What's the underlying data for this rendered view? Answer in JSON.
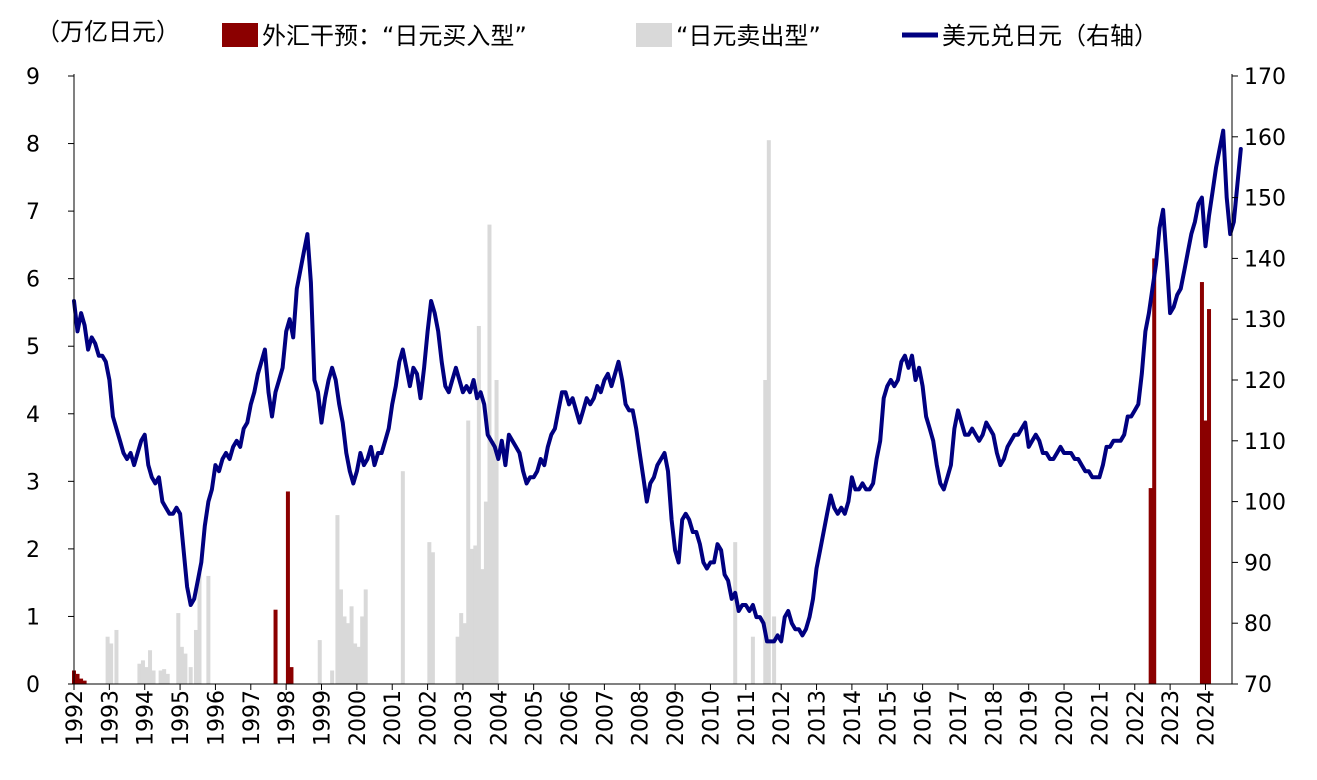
{
  "chart_data": {
    "type": "bar+line",
    "unit_label": "（万亿日元）",
    "legend": [
      {
        "name": "外汇干预：“日元买入型”",
        "kind": "bar",
        "color": "#8B0000"
      },
      {
        "name": "“日元卖出型”",
        "kind": "bar",
        "color": "#D9D9D9"
      },
      {
        "name": "美元兑日元（右轴）",
        "kind": "line",
        "color": "#000080"
      }
    ],
    "left_axis": {
      "min": 0,
      "max": 9,
      "ticks": [
        0,
        1,
        2,
        3,
        4,
        5,
        6,
        7,
        8,
        9
      ]
    },
    "right_axis": {
      "min": 70,
      "max": 170,
      "ticks": [
        70,
        80,
        90,
        100,
        110,
        120,
        130,
        140,
        150,
        160,
        170
      ]
    },
    "x_axis": {
      "start": 1992,
      "end": 2024.75,
      "tick_labels": [
        "1992",
        "1993",
        "1994",
        "1995",
        "1996",
        "1997",
        "1998",
        "1999",
        "2000",
        "2001",
        "2002",
        "2003",
        "2004",
        "2005",
        "2006",
        "2007",
        "2008",
        "2009",
        "2010",
        "2011",
        "2012",
        "2013",
        "2014",
        "2015",
        "2016",
        "2017",
        "2018",
        "2019",
        "2020",
        "2021",
        "2022",
        "2023",
        "2024"
      ]
    },
    "grid": false,
    "colors": {
      "buy": "#8B0000",
      "sell": "#D9D9D9",
      "line": "#000080",
      "axis": "#000000"
    },
    "buy_interventions": [
      {
        "t": 1992.0,
        "v": 0.2
      },
      {
        "t": 1992.1,
        "v": 0.15
      },
      {
        "t": 1992.2,
        "v": 0.08
      },
      {
        "t": 1992.3,
        "v": 0.05
      },
      {
        "t": 1997.7,
        "v": 1.1
      },
      {
        "t": 1998.05,
        "v": 2.85
      },
      {
        "t": 1998.15,
        "v": 0.25
      },
      {
        "t": 2022.45,
        "v": 2.9
      },
      {
        "t": 2022.55,
        "v": 6.3
      },
      {
        "t": 2023.9,
        "v": 5.95
      },
      {
        "t": 2024.0,
        "v": 3.9
      },
      {
        "t": 2024.1,
        "v": 5.55
      }
    ],
    "sell_interventions": [
      {
        "t": 1992.95,
        "v": 0.7
      },
      {
        "t": 1993.05,
        "v": 0.6
      },
      {
        "t": 1993.2,
        "v": 0.8
      },
      {
        "t": 1993.85,
        "v": 0.3
      },
      {
        "t": 1993.95,
        "v": 0.35
      },
      {
        "t": 1994.05,
        "v": 0.25
      },
      {
        "t": 1994.15,
        "v": 0.5
      },
      {
        "t": 1994.25,
        "v": 0.2
      },
      {
        "t": 1994.45,
        "v": 0.2
      },
      {
        "t": 1994.55,
        "v": 0.22
      },
      {
        "t": 1994.65,
        "v": 0.15
      },
      {
        "t": 1994.95,
        "v": 1.05
      },
      {
        "t": 1995.05,
        "v": 0.55
      },
      {
        "t": 1995.15,
        "v": 0.45
      },
      {
        "t": 1995.3,
        "v": 0.25
      },
      {
        "t": 1995.45,
        "v": 0.8
      },
      {
        "t": 1995.55,
        "v": 1.65
      },
      {
        "t": 1995.8,
        "v": 1.6
      },
      {
        "t": 1998.95,
        "v": 0.65
      },
      {
        "t": 1999.3,
        "v": 0.2
      },
      {
        "t": 1999.45,
        "v": 2.5
      },
      {
        "t": 1999.55,
        "v": 1.4
      },
      {
        "t": 1999.65,
        "v": 1.0
      },
      {
        "t": 1999.75,
        "v": 0.9
      },
      {
        "t": 1999.85,
        "v": 1.15
      },
      {
        "t": 1999.95,
        "v": 0.6
      },
      {
        "t": 2000.05,
        "v": 0.55
      },
      {
        "t": 2000.15,
        "v": 1.0
      },
      {
        "t": 2000.25,
        "v": 1.4
      },
      {
        "t": 2001.3,
        "v": 3.15
      },
      {
        "t": 2002.05,
        "v": 2.1
      },
      {
        "t": 2002.15,
        "v": 1.95
      },
      {
        "t": 2002.85,
        "v": 0.7
      },
      {
        "t": 2002.95,
        "v": 1.05
      },
      {
        "t": 2003.05,
        "v": 0.9
      },
      {
        "t": 2003.15,
        "v": 3.9
      },
      {
        "t": 2003.25,
        "v": 2.0
      },
      {
        "t": 2003.35,
        "v": 2.05
      },
      {
        "t": 2003.45,
        "v": 5.3
      },
      {
        "t": 2003.55,
        "v": 1.7
      },
      {
        "t": 2003.65,
        "v": 2.7
      },
      {
        "t": 2003.75,
        "v": 6.8
      },
      {
        "t": 2003.85,
        "v": 3.6
      },
      {
        "t": 2003.95,
        "v": 4.5
      },
      {
        "t": 2010.7,
        "v": 2.1
      },
      {
        "t": 2011.2,
        "v": 0.7
      },
      {
        "t": 2011.55,
        "v": 4.5
      },
      {
        "t": 2011.65,
        "v": 8.05
      },
      {
        "t": 2011.8,
        "v": 1.0
      }
    ],
    "usd_jpy": [
      [
        1992.0,
        133
      ],
      [
        1992.1,
        128
      ],
      [
        1992.2,
        131
      ],
      [
        1992.3,
        129
      ],
      [
        1992.4,
        125
      ],
      [
        1992.5,
        127
      ],
      [
        1992.6,
        126
      ],
      [
        1992.7,
        124
      ],
      [
        1992.8,
        124
      ],
      [
        1992.9,
        123
      ],
      [
        1993.0,
        120
      ],
      [
        1993.1,
        114
      ],
      [
        1993.2,
        112
      ],
      [
        1993.3,
        110
      ],
      [
        1993.4,
        108
      ],
      [
        1993.5,
        107
      ],
      [
        1993.6,
        108
      ],
      [
        1993.7,
        106
      ],
      [
        1993.8,
        108
      ],
      [
        1993.9,
        110
      ],
      [
        1994.0,
        111
      ],
      [
        1994.1,
        106
      ],
      [
        1994.2,
        104
      ],
      [
        1994.3,
        103
      ],
      [
        1994.4,
        104
      ],
      [
        1994.5,
        100
      ],
      [
        1994.6,
        99
      ],
      [
        1994.7,
        98
      ],
      [
        1994.8,
        98
      ],
      [
        1994.9,
        99
      ],
      [
        1995.0,
        98
      ],
      [
        1995.1,
        92
      ],
      [
        1995.2,
        86
      ],
      [
        1995.3,
        83
      ],
      [
        1995.4,
        84
      ],
      [
        1995.5,
        87
      ],
      [
        1995.6,
        90
      ],
      [
        1995.7,
        96
      ],
      [
        1995.8,
        100
      ],
      [
        1995.9,
        102
      ],
      [
        1996.0,
        106
      ],
      [
        1996.1,
        105
      ],
      [
        1996.2,
        107
      ],
      [
        1996.3,
        108
      ],
      [
        1996.4,
        107
      ],
      [
        1996.5,
        109
      ],
      [
        1996.6,
        110
      ],
      [
        1996.7,
        109
      ],
      [
        1996.8,
        112
      ],
      [
        1996.9,
        113
      ],
      [
        1997.0,
        116
      ],
      [
        1997.1,
        118
      ],
      [
        1997.2,
        121
      ],
      [
        1997.3,
        123
      ],
      [
        1997.4,
        125
      ],
      [
        1997.5,
        118
      ],
      [
        1997.6,
        114
      ],
      [
        1997.7,
        118
      ],
      [
        1997.8,
        120
      ],
      [
        1997.9,
        122
      ],
      [
        1998.0,
        128
      ],
      [
        1998.1,
        130
      ],
      [
        1998.2,
        127
      ],
      [
        1998.3,
        135
      ],
      [
        1998.4,
        138
      ],
      [
        1998.5,
        141
      ],
      [
        1998.6,
        144
      ],
      [
        1998.7,
        136
      ],
      [
        1998.8,
        120
      ],
      [
        1998.9,
        118
      ],
      [
        1999.0,
        113
      ],
      [
        1999.1,
        117
      ],
      [
        1999.2,
        120
      ],
      [
        1999.3,
        122
      ],
      [
        1999.4,
        120
      ],
      [
        1999.5,
        116
      ],
      [
        1999.6,
        113
      ],
      [
        1999.7,
        108
      ],
      [
        1999.8,
        105
      ],
      [
        1999.9,
        103
      ],
      [
        2000.0,
        105
      ],
      [
        2000.1,
        108
      ],
      [
        2000.2,
        106
      ],
      [
        2000.3,
        107
      ],
      [
        2000.4,
        109
      ],
      [
        2000.5,
        106
      ],
      [
        2000.6,
        108
      ],
      [
        2000.7,
        108
      ],
      [
        2000.8,
        110
      ],
      [
        2000.9,
        112
      ],
      [
        2001.0,
        116
      ],
      [
        2001.1,
        119
      ],
      [
        2001.2,
        123
      ],
      [
        2001.3,
        125
      ],
      [
        2001.4,
        122
      ],
      [
        2001.5,
        119
      ],
      [
        2001.6,
        122
      ],
      [
        2001.7,
        121
      ],
      [
        2001.8,
        117
      ],
      [
        2001.9,
        122
      ],
      [
        2002.0,
        128
      ],
      [
        2002.1,
        133
      ],
      [
        2002.2,
        131
      ],
      [
        2002.3,
        128
      ],
      [
        2002.4,
        123
      ],
      [
        2002.5,
        119
      ],
      [
        2002.6,
        118
      ],
      [
        2002.7,
        120
      ],
      [
        2002.8,
        122
      ],
      [
        2002.9,
        120
      ],
      [
        2003.0,
        118
      ],
      [
        2003.1,
        119
      ],
      [
        2003.2,
        118
      ],
      [
        2003.3,
        120
      ],
      [
        2003.4,
        117
      ],
      [
        2003.5,
        118
      ],
      [
        2003.6,
        116
      ],
      [
        2003.7,
        111
      ],
      [
        2003.8,
        110
      ],
      [
        2003.9,
        109
      ],
      [
        2004.0,
        107
      ],
      [
        2004.1,
        110
      ],
      [
        2004.2,
        106
      ],
      [
        2004.3,
        111
      ],
      [
        2004.4,
        110
      ],
      [
        2004.5,
        109
      ],
      [
        2004.6,
        108
      ],
      [
        2004.7,
        105
      ],
      [
        2004.8,
        103
      ],
      [
        2004.9,
        104
      ],
      [
        2005.0,
        104
      ],
      [
        2005.1,
        105
      ],
      [
        2005.2,
        107
      ],
      [
        2005.3,
        106
      ],
      [
        2005.4,
        109
      ],
      [
        2005.5,
        111
      ],
      [
        2005.6,
        112
      ],
      [
        2005.7,
        115
      ],
      [
        2005.8,
        118
      ],
      [
        2005.9,
        118
      ],
      [
        2006.0,
        116
      ],
      [
        2006.1,
        117
      ],
      [
        2006.2,
        115
      ],
      [
        2006.3,
        113
      ],
      [
        2006.4,
        115
      ],
      [
        2006.5,
        117
      ],
      [
        2006.6,
        116
      ],
      [
        2006.7,
        117
      ],
      [
        2006.8,
        119
      ],
      [
        2006.9,
        118
      ],
      [
        2007.0,
        120
      ],
      [
        2007.1,
        121
      ],
      [
        2007.2,
        119
      ],
      [
        2007.3,
        121
      ],
      [
        2007.4,
        123
      ],
      [
        2007.5,
        120
      ],
      [
        2007.6,
        116
      ],
      [
        2007.7,
        115
      ],
      [
        2007.8,
        115
      ],
      [
        2007.9,
        112
      ],
      [
        2008.0,
        108
      ],
      [
        2008.1,
        104
      ],
      [
        2008.2,
        100
      ],
      [
        2008.3,
        103
      ],
      [
        2008.4,
        104
      ],
      [
        2008.5,
        106
      ],
      [
        2008.6,
        107
      ],
      [
        2008.7,
        108
      ],
      [
        2008.8,
        105
      ],
      [
        2008.9,
        97
      ],
      [
        2009.0,
        92
      ],
      [
        2009.1,
        90
      ],
      [
        2009.2,
        97
      ],
      [
        2009.3,
        98
      ],
      [
        2009.4,
        97
      ],
      [
        2009.5,
        95
      ],
      [
        2009.6,
        95
      ],
      [
        2009.7,
        93
      ],
      [
        2009.8,
        90
      ],
      [
        2009.9,
        89
      ],
      [
        2010.0,
        90
      ],
      [
        2010.1,
        90
      ],
      [
        2010.2,
        93
      ],
      [
        2010.3,
        92
      ],
      [
        2010.4,
        88
      ],
      [
        2010.5,
        87
      ],
      [
        2010.6,
        84
      ],
      [
        2010.7,
        85
      ],
      [
        2010.8,
        82
      ],
      [
        2010.9,
        83
      ],
      [
        2011.0,
        83
      ],
      [
        2011.1,
        82
      ],
      [
        2011.2,
        83
      ],
      [
        2011.3,
        81
      ],
      [
        2011.4,
        81
      ],
      [
        2011.5,
        80
      ],
      [
        2011.6,
        77
      ],
      [
        2011.7,
        77
      ],
      [
        2011.8,
        77
      ],
      [
        2011.9,
        78
      ],
      [
        2012.0,
        77
      ],
      [
        2012.1,
        81
      ],
      [
        2012.2,
        82
      ],
      [
        2012.3,
        80
      ],
      [
        2012.4,
        79
      ],
      [
        2012.5,
        79
      ],
      [
        2012.6,
        78
      ],
      [
        2012.7,
        79
      ],
      [
        2012.8,
        81
      ],
      [
        2012.9,
        84
      ],
      [
        2013.0,
        89
      ],
      [
        2013.1,
        92
      ],
      [
        2013.2,
        95
      ],
      [
        2013.3,
        98
      ],
      [
        2013.4,
        101
      ],
      [
        2013.5,
        99
      ],
      [
        2013.6,
        98
      ],
      [
        2013.7,
        99
      ],
      [
        2013.8,
        98
      ],
      [
        2013.9,
        100
      ],
      [
        2014.0,
        104
      ],
      [
        2014.1,
        102
      ],
      [
        2014.2,
        102
      ],
      [
        2014.3,
        103
      ],
      [
        2014.4,
        102
      ],
      [
        2014.5,
        102
      ],
      [
        2014.6,
        103
      ],
      [
        2014.7,
        107
      ],
      [
        2014.8,
        110
      ],
      [
        2014.9,
        117
      ],
      [
        2015.0,
        119
      ],
      [
        2015.1,
        120
      ],
      [
        2015.2,
        119
      ],
      [
        2015.3,
        120
      ],
      [
        2015.4,
        123
      ],
      [
        2015.5,
        124
      ],
      [
        2015.6,
        122
      ],
      [
        2015.7,
        124
      ],
      [
        2015.8,
        120
      ],
      [
        2015.9,
        122
      ],
      [
        2016.0,
        119
      ],
      [
        2016.1,
        114
      ],
      [
        2016.2,
        112
      ],
      [
        2016.3,
        110
      ],
      [
        2016.4,
        106
      ],
      [
        2016.5,
        103
      ],
      [
        2016.6,
        102
      ],
      [
        2016.7,
        104
      ],
      [
        2016.8,
        106
      ],
      [
        2016.9,
        112
      ],
      [
        2017.0,
        115
      ],
      [
        2017.1,
        113
      ],
      [
        2017.2,
        111
      ],
      [
        2017.3,
        111
      ],
      [
        2017.4,
        112
      ],
      [
        2017.5,
        111
      ],
      [
        2017.6,
        110
      ],
      [
        2017.7,
        111
      ],
      [
        2017.8,
        113
      ],
      [
        2017.9,
        112
      ],
      [
        2018.0,
        111
      ],
      [
        2018.1,
        108
      ],
      [
        2018.2,
        106
      ],
      [
        2018.3,
        107
      ],
      [
        2018.4,
        109
      ],
      [
        2018.5,
        110
      ],
      [
        2018.6,
        111
      ],
      [
        2018.7,
        111
      ],
      [
        2018.8,
        112
      ],
      [
        2018.9,
        113
      ],
      [
        2019.0,
        109
      ],
      [
        2019.1,
        110
      ],
      [
        2019.2,
        111
      ],
      [
        2019.3,
        110
      ],
      [
        2019.4,
        108
      ],
      [
        2019.5,
        108
      ],
      [
        2019.6,
        107
      ],
      [
        2019.7,
        107
      ],
      [
        2019.8,
        108
      ],
      [
        2019.9,
        109
      ],
      [
        2020.0,
        108
      ],
      [
        2020.1,
        108
      ],
      [
        2020.2,
        108
      ],
      [
        2020.3,
        107
      ],
      [
        2020.4,
        107
      ],
      [
        2020.5,
        106
      ],
      [
        2020.6,
        105
      ],
      [
        2020.7,
        105
      ],
      [
        2020.8,
        104
      ],
      [
        2020.9,
        104
      ],
      [
        2021.0,
        104
      ],
      [
        2021.1,
        106
      ],
      [
        2021.2,
        109
      ],
      [
        2021.3,
        109
      ],
      [
        2021.4,
        110
      ],
      [
        2021.5,
        110
      ],
      [
        2021.6,
        110
      ],
      [
        2021.7,
        111
      ],
      [
        2021.8,
        114
      ],
      [
        2021.9,
        114
      ],
      [
        2022.0,
        115
      ],
      [
        2022.1,
        116
      ],
      [
        2022.2,
        121
      ],
      [
        2022.3,
        128
      ],
      [
        2022.4,
        131
      ],
      [
        2022.5,
        135
      ],
      [
        2022.6,
        139
      ],
      [
        2022.7,
        145
      ],
      [
        2022.8,
        148
      ],
      [
        2022.9,
        140
      ],
      [
        2023.0,
        131
      ],
      [
        2023.1,
        132
      ],
      [
        2023.2,
        134
      ],
      [
        2023.3,
        135
      ],
      [
        2023.4,
        138
      ],
      [
        2023.5,
        141
      ],
      [
        2023.6,
        144
      ],
      [
        2023.7,
        146
      ],
      [
        2023.8,
        149
      ],
      [
        2023.9,
        150
      ],
      [
        2024.0,
        142
      ],
      [
        2024.1,
        147
      ],
      [
        2024.2,
        151
      ],
      [
        2024.3,
        155
      ],
      [
        2024.4,
        158
      ],
      [
        2024.5,
        161
      ],
      [
        2024.6,
        150
      ],
      [
        2024.7,
        144
      ],
      [
        2024.8,
        146
      ],
      [
        2024.9,
        152
      ],
      [
        2025.0,
        158
      ]
    ]
  }
}
